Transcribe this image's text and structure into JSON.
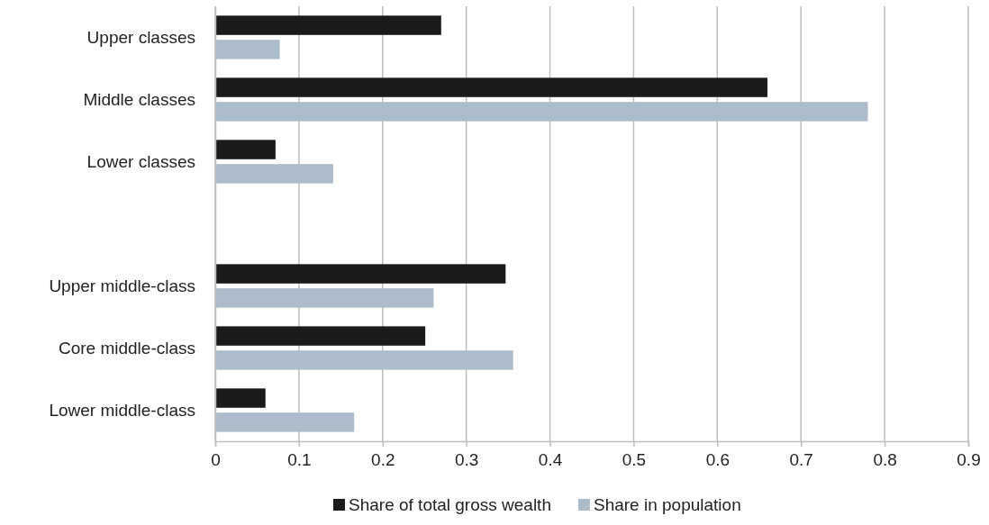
{
  "chart_data": {
    "type": "bar",
    "orientation": "horizontal",
    "categories": [
      "Upper classes",
      "Middle classes",
      "Lower classes",
      null,
      "Upper middle-class",
      "Core middle-class",
      "Lower middle-class"
    ],
    "series": [
      {
        "name": "Share of total gross wealth",
        "color": "#1b1b1b",
        "values": [
          0.27,
          0.66,
          0.072,
          null,
          0.347,
          0.251,
          0.06
        ]
      },
      {
        "name": "Share in population",
        "color": "#adbccb",
        "values": [
          0.077,
          0.78,
          0.141,
          null,
          0.261,
          0.356,
          0.166
        ]
      }
    ],
    "xlim": [
      0,
      0.9
    ],
    "xticks": [
      0,
      0.1,
      0.2,
      0.3,
      0.4,
      0.5,
      0.6,
      0.7,
      0.8,
      0.9
    ],
    "grid": "x",
    "legend": "bottom"
  }
}
